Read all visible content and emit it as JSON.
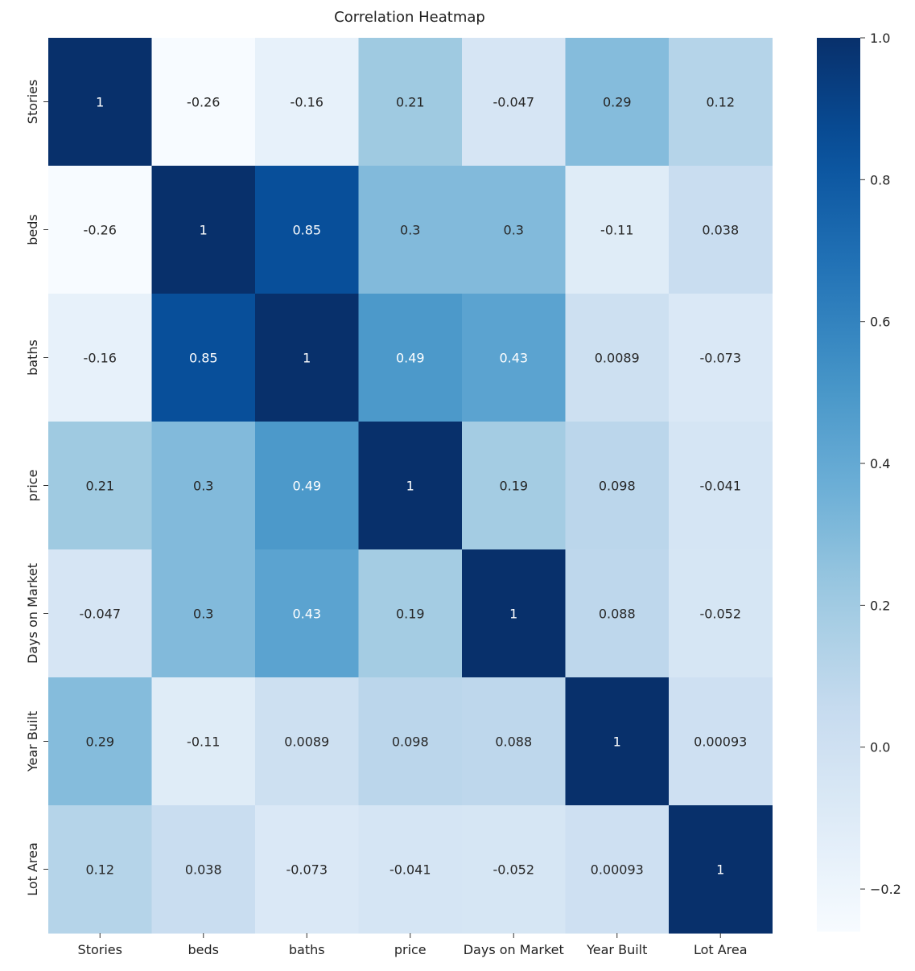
{
  "chart_data": {
    "type": "heatmap",
    "title": "Correlation Heatmap",
    "xlabel": "",
    "ylabel": "",
    "x_categories": [
      "Stories",
      "beds",
      "baths",
      "price",
      "Days on Market",
      "Year Built",
      "Lot Area"
    ],
    "y_categories": [
      "Stories",
      "beds",
      "baths",
      "price",
      "Days on Market",
      "Year Built",
      "Lot Area"
    ],
    "values": [
      [
        1,
        -0.26,
        -0.16,
        0.21,
        -0.047,
        0.29,
        0.12
      ],
      [
        -0.26,
        1,
        0.85,
        0.3,
        0.3,
        -0.11,
        0.038
      ],
      [
        -0.16,
        0.85,
        1,
        0.49,
        0.43,
        0.0089,
        -0.073
      ],
      [
        0.21,
        0.3,
        0.49,
        1,
        0.19,
        0.098,
        -0.041
      ],
      [
        -0.047,
        0.3,
        0.43,
        0.19,
        1,
        0.088,
        -0.052
      ],
      [
        0.29,
        -0.11,
        0.0089,
        0.098,
        0.088,
        1,
        0.00093
      ],
      [
        0.12,
        0.038,
        -0.073,
        -0.041,
        -0.052,
        0.00093,
        1
      ]
    ],
    "annotations": [
      [
        "1",
        "-0.26",
        "-0.16",
        "0.21",
        "-0.047",
        "0.29",
        "0.12"
      ],
      [
        "-0.26",
        "1",
        "0.85",
        "0.3",
        "0.3",
        "-0.11",
        "0.038"
      ],
      [
        "-0.16",
        "0.85",
        "1",
        "0.49",
        "0.43",
        "0.0089",
        "-0.073"
      ],
      [
        "0.21",
        "0.3",
        "0.49",
        "1",
        "0.19",
        "0.098",
        "-0.041"
      ],
      [
        "-0.047",
        "0.3",
        "0.43",
        "0.19",
        "1",
        "0.088",
        "-0.052"
      ],
      [
        "0.29",
        "-0.11",
        "0.0089",
        "0.098",
        "0.088",
        "1",
        "0.00093"
      ],
      [
        "0.12",
        "0.038",
        "-0.073",
        "-0.041",
        "-0.052",
        "0.00093",
        "1"
      ]
    ],
    "colormap": "Blues",
    "vmin": -0.26,
    "vmax": 1,
    "colorbar_ticks": [
      1.0,
      0.8,
      0.6,
      0.4,
      0.2,
      0.0,
      -0.2
    ],
    "colorbar_tick_labels": [
      "1.0",
      "0.8",
      "0.6",
      "0.4",
      "0.2",
      "0.0",
      "−0.2"
    ],
    "colors": {
      "low": "#f7fbff",
      "high": "#08306b",
      "annot_dark": "#262626",
      "annot_light": "#ffffff"
    }
  }
}
